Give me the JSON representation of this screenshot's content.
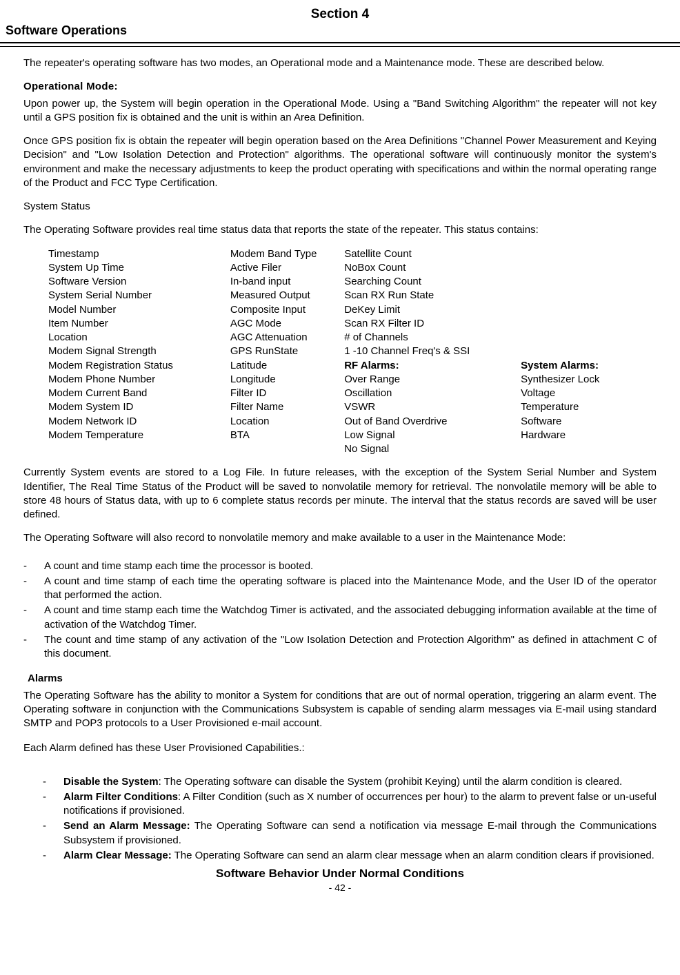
{
  "header": {
    "section_title": "Section 4",
    "subtitle": "Software Operations"
  },
  "intro": "The repeater's operating software has two modes, an Operational mode and a Maintenance mode.  These are described below.",
  "op_mode_heading": "Operational Mode:",
  "op_para1": "Upon power up, the System will begin operation in the Operational Mode.  Using a \"Band Switching Algorithm\" the repeater will not key until a GPS position fix is obtained and the unit is within an Area Definition.",
  "op_para2": "Once GPS position fix is obtain the repeater will begin operation based on the Area Definitions \"Channel Power Measurement and Keying Decision\" and \"Low Isolation Detection and Protection\" algorithms.  The operational software will continuously monitor the system's environment and make the necessary adjustments to keep the product operating with specifications and within the normal operating range of the Product and FCC Type Certification.",
  "system_status_heading": "System Status",
  "system_status_intro": "The Operating Software provides real time status data that reports the state of the repeater.  This status contains:",
  "status_col1": [
    "Timestamp",
    "System Up Time",
    "Software Version",
    "System Serial Number",
    "Model Number",
    "Item Number",
    "Location",
    "Modem Signal Strength",
    "Modem Registration Status",
    "Modem Phone Number",
    "Modem Current Band",
    "Modem System ID",
    "Modem Network ID",
    "Modem Temperature"
  ],
  "status_col2": [
    "Modem Band Type",
    "Active Filer",
    "In-band input",
    "Measured Output",
    "Composite Input",
    "AGC Mode",
    "AGC Attenuation",
    "GPS RunState",
    "Latitude",
    "Longitude",
    "Filter ID",
    "Filter Name",
    "Location",
    "BTA"
  ],
  "status_col3_top": [
    "Satellite Count",
    "NoBox Count",
    "Searching Count",
    "Scan RX Run State",
    "DeKey Limit",
    "Scan RX Filter ID",
    "# of Channels",
    "1 -10 Channel Freq's & SSI"
  ],
  "rf_alarms_heading": "RF Alarms:",
  "rf_alarms": [
    "Over Range",
    "Oscillation",
    "VSWR",
    "Out of Band Overdrive",
    "Low Signal",
    "No Signal"
  ],
  "sys_alarms_heading": "System Alarms:",
  "sys_alarms": [
    "Synthesizer Lock",
    "Voltage",
    "Temperature",
    "Software",
    "Hardware"
  ],
  "currently_para": "Currently System events are stored to a Log File. In future releases, with the exception of the System Serial Number and System Identifier, The Real Time Status of the Product will be saved to nonvolatile memory for retrieval. The nonvolatile memory will be able to store 48 hours of Status data, with up to 6 complete status records per minute. The interval that the status records are saved will be user defined.",
  "also_record": "The Operating Software will also record to nonvolatile memory and make available to a user in the Maintenance Mode:",
  "bullets": [
    "A count and time stamp each time the processor is booted.",
    "A count and time stamp of each time the operating software is placed into the Maintenance Mode, and the User ID of the operator that performed the action.",
    "A count and time stamp each time the Watchdog Timer is activated, and the associated debugging information available at the time of activation of the Watchdog Timer.",
    "The count and time stamp of any activation of the \"Low Isolation Detection and Protection Algorithm\" as defined in attachment C of this document."
  ],
  "alarms_heading": "Alarms",
  "alarms_para": "The Operating Software has the ability to monitor a System for conditions that are out of normal operation, triggering an alarm event.  The Operating software in conjunction with the Communications Subsystem is capable of sending alarm messages via E-mail using standard SMTP and POP3 protocols to a User Provisioned e-mail account.",
  "each_alarm": "Each Alarm defined has these User Provisioned Capabilities.:",
  "alarm_caps": [
    {
      "label": "Disable the System",
      "text": ":  The Operating software can disable the System (prohibit Keying) until the alarm condition is cleared."
    },
    {
      "label": "Alarm Filter Conditions",
      "text": ":  A Filter Condition (such as X number of occurrences per hour) to the alarm to prevent false or un-useful notifications if provisioned."
    },
    {
      "label": "Send an Alarm Message:",
      "text": "  The Operating Software can send a notification via message E-mail through the Communications Subsystem if provisioned."
    },
    {
      "label": "Alarm Clear Message:",
      "text": "  The Operating Software can send an alarm clear message when an alarm condition clears if provisioned."
    }
  ],
  "footer_title": "Software Behavior Under Normal Conditions",
  "page_num": "- 42 -"
}
